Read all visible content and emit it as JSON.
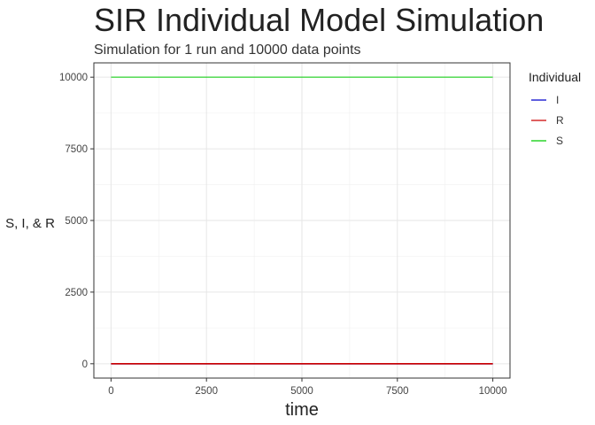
{
  "chart_data": {
    "type": "line",
    "title": "SIR Individual Model Simulation",
    "subtitle": "Simulation for 1 run and 10000 data points",
    "xlabel": "time",
    "ylabel": "S, I, & R",
    "xlim": [
      -450,
      10450
    ],
    "ylim": [
      -500,
      10500
    ],
    "x_ticks": [
      0,
      2500,
      5000,
      7500,
      10000
    ],
    "x_tick_labels": [
      "0",
      "2500",
      "5000",
      "7500",
      "10000"
    ],
    "y_ticks": [
      0,
      2500,
      5000,
      7500,
      10000
    ],
    "y_tick_labels": [
      "0",
      "2500",
      "5000",
      "7500",
      "10000"
    ],
    "grid": true,
    "legend": {
      "title": "Individual",
      "position": "right"
    },
    "series": [
      {
        "name": "I",
        "color": "#0000CC",
        "x": [
          0,
          10000
        ],
        "y": [
          0,
          0
        ]
      },
      {
        "name": "R",
        "color": "#CC0000",
        "x": [
          0,
          10000
        ],
        "y": [
          0,
          0
        ]
      },
      {
        "name": "S",
        "color": "#00CC00",
        "x": [
          0,
          10000
        ],
        "y": [
          10000,
          10000
        ]
      }
    ]
  }
}
